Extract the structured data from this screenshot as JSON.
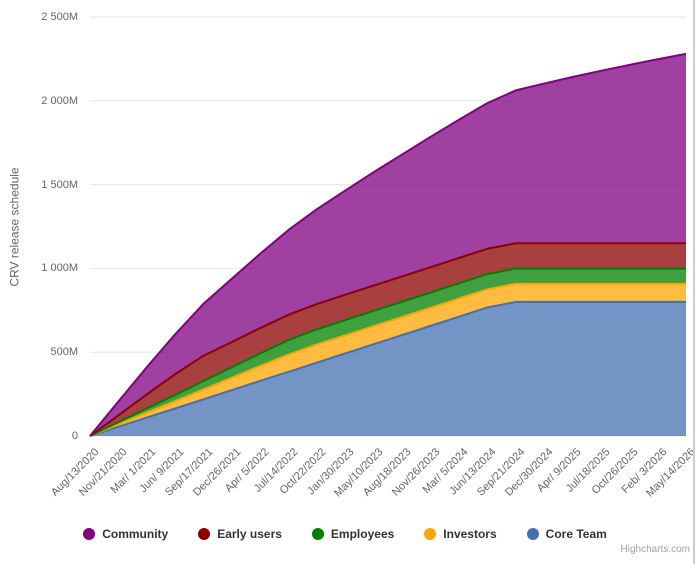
{
  "chart_data": {
    "type": "area",
    "stacking": "normal",
    "title": "",
    "ylabel": "CRV release schedule",
    "xlabel": "",
    "ylim": [
      0,
      2500
    ],
    "grid": true,
    "grid_color": "#e6e6e6",
    "fill_opacity": 0.75,
    "yticks": [
      {
        "value": 0,
        "label": "0"
      },
      {
        "value": 500,
        "label": "500M"
      },
      {
        "value": 1000,
        "label": "1 000M"
      },
      {
        "value": 1500,
        "label": "1 500M"
      },
      {
        "value": 2000,
        "label": "2 000M"
      },
      {
        "value": 2500,
        "label": "2 500M"
      }
    ],
    "categories": [
      "Aug/13/2020",
      "Nov/21/2020",
      "Mar/ 1/2021",
      "Jun/ 9/2021",
      "Sep/17/2021",
      "Dec/26/2021",
      "Apr/ 5/2022",
      "Jul/14/2022",
      "Oct/22/2022",
      "Jan/30/2023",
      "May/10/2023",
      "Aug/18/2023",
      "Nov/26/2023",
      "Mar/ 5/2024",
      "Jun/13/2024",
      "Sep/21/2024",
      "Dec/30/2024",
      "Apr/ 9/2025",
      "Jul/18/2025",
      "Oct/26/2025",
      "Feb/ 3/2026",
      "May/14/2026"
    ],
    "series": [
      {
        "name": "Core Team",
        "color": "#4470b0",
        "values": [
          0,
          55,
          110,
          164,
          219,
          274,
          329,
          383,
          438,
          493,
          548,
          602,
          657,
          712,
          767,
          800,
          800,
          800,
          800,
          800,
          800,
          800
        ]
      },
      {
        "name": "Investors",
        "color": "#ffa500",
        "values": [
          0,
          15,
          30,
          44,
          59,
          74,
          89,
          103,
          108,
          108,
          108,
          108,
          108,
          108,
          108,
          108,
          108,
          108,
          108,
          108,
          108,
          108
        ]
      },
      {
        "name": "Employees",
        "color": "#008000",
        "values": [
          0,
          12,
          25,
          37,
          50,
          62,
          75,
          87,
          91,
          91,
          91,
          91,
          91,
          91,
          91,
          91,
          91,
          91,
          91,
          91,
          91,
          91
        ]
      },
      {
        "name": "Early users",
        "color": "#8b0000",
        "values": [
          0,
          41,
          83,
          124,
          151,
          151,
          151,
          151,
          151,
          151,
          151,
          151,
          151,
          151,
          151,
          151,
          151,
          151,
          151,
          151,
          151,
          151
        ]
      },
      {
        "name": "Community",
        "color": "#800080",
        "values": [
          0,
          83,
          162,
          238,
          310,
          378,
          444,
          506,
          566,
          622,
          677,
          728,
          778,
          825,
          869,
          912,
          953,
          992,
          1029,
          1064,
          1098,
          1130
        ]
      }
    ],
    "legend": {
      "position": "bottom-center",
      "order": [
        "Community",
        "Early users",
        "Employees",
        "Investors",
        "Core Team"
      ]
    }
  },
  "credits": {
    "label": "Highcharts.com"
  }
}
